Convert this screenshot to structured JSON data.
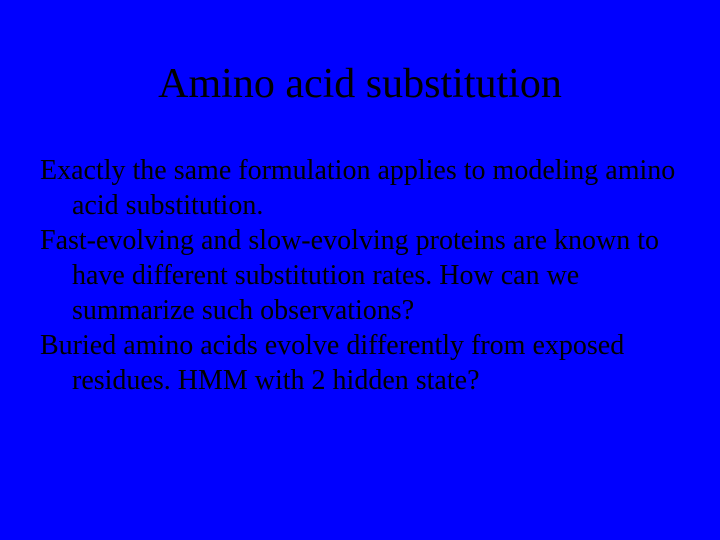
{
  "slide": {
    "title": "Amino acid substitution",
    "paragraphs": [
      "Exactly the same formulation applies to modeling amino acid substitution.",
      "Fast-evolving and slow-evolving proteins are known to have different substitution rates. How can we summarize such observations?",
      "Buried amino acids evolve differently from exposed residues. HMM with 2 hidden state?"
    ]
  },
  "styling": {
    "background_color": "#0000ff",
    "text_color": "#000000",
    "title_fontsize": 42,
    "body_fontsize": 28,
    "font_family": "Times New Roman",
    "slide_width": 720,
    "slide_height": 540,
    "title_align": "center",
    "body_indent_style": "hanging"
  }
}
